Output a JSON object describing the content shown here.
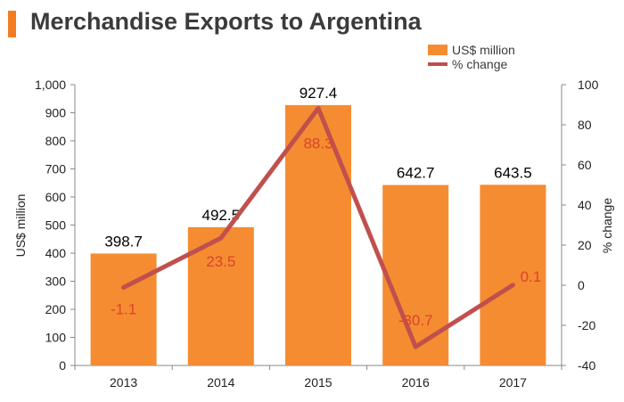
{
  "title": "Merchandise Exports to Argentina",
  "colors": {
    "bar": "#f58c31",
    "line": "#c0504d",
    "pct_label": "#d9452b",
    "title_accent": "#f47c20"
  },
  "chart_data": {
    "type": "bar",
    "categories": [
      "2013",
      "2014",
      "2015",
      "2016",
      "2017"
    ],
    "series": [
      {
        "name": "US$ million",
        "type": "bar",
        "axis": "left",
        "values": [
          398.7,
          492.5,
          927.4,
          642.7,
          643.5
        ]
      },
      {
        "name": "% change",
        "type": "line",
        "axis": "right",
        "values": [
          -1.1,
          23.5,
          88.3,
          -30.7,
          0.1
        ]
      }
    ],
    "bar_labels": [
      "398.7",
      "492.5",
      "927.4",
      "642.7",
      "643.5"
    ],
    "line_labels": [
      "-1.1",
      "23.5",
      "88.3",
      "-30.7",
      "0.1"
    ],
    "ylabel": "US$ million",
    "y2label": "% change",
    "ylim": [
      0,
      1000
    ],
    "y2lim": [
      -40,
      100
    ],
    "yticks": [
      0,
      100,
      200,
      300,
      400,
      500,
      600,
      700,
      800,
      900,
      1000
    ],
    "ytick_labels": [
      "0",
      "100",
      "200",
      "300",
      "400",
      "500",
      "600",
      "700",
      "800",
      "900",
      "1,000"
    ],
    "y2ticks": [
      -40,
      -20,
      0,
      20,
      40,
      60,
      80,
      100
    ],
    "y2tick_labels": [
      "-40",
      "-20",
      "0",
      "20",
      "40",
      "60",
      "80",
      "100"
    ],
    "legend_position": "top-right",
    "grid": false
  }
}
